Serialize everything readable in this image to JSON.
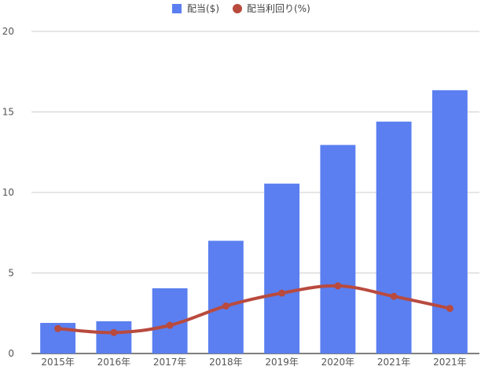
{
  "chart_data": {
    "type": "bar",
    "categories": [
      "2015年",
      "2016年",
      "2017年",
      "2018年",
      "2019年",
      "2020年",
      "2021年",
      "2021年"
    ],
    "series": [
      {
        "name": "配当($)",
        "type": "bar",
        "color": "#5b7ff0",
        "values": [
          1.9,
          2.0,
          4.05,
          7.0,
          10.55,
          12.95,
          14.4,
          16.35
        ]
      },
      {
        "name": "配当利回り(%)",
        "type": "line",
        "color": "#b94a3e",
        "values": [
          1.55,
          1.3,
          1.75,
          2.95,
          3.75,
          4.2,
          3.55,
          2.8
        ]
      }
    ],
    "y_ticks": [
      "0",
      "5",
      "10",
      "15",
      "20"
    ],
    "ylim": [
      0,
      20
    ],
    "grid": true,
    "legend_position": "top-center"
  }
}
